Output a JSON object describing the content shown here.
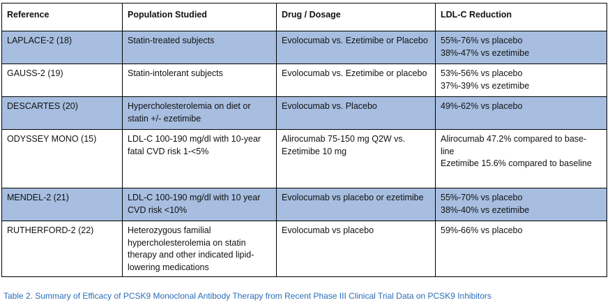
{
  "table": {
    "headers": [
      "Reference",
      "Population Studied",
      "Drug / Dosage",
      "LDL-C Reduction"
    ],
    "rows": [
      {
        "reference": "LAPLACE-2 (18)",
        "population": [
          "Statin-treated subjects"
        ],
        "drug": [
          "Evolocumab vs. Ezetimibe or Placebo"
        ],
        "reduction": [
          "55%-76% vs placebo",
          "38%-47% vs ezetimibe"
        ]
      },
      {
        "reference": "GAUSS-2 (19)",
        "population": [
          "Statin-intolerant subjects"
        ],
        "drug": [
          "Evolocumab vs. Ezetimibe or placebo"
        ],
        "reduction": [
          "53%-56% vs placebo",
          "37%-39% vs ezetimibe"
        ]
      },
      {
        "reference": "DESCARTES (20)",
        "population": [
          "Hypercholesterolemia on diet or",
          "statin +/- ezetimibe"
        ],
        "drug": [
          "Evolocumab vs. Placebo"
        ],
        "reduction": [
          "49%-62% vs placebo"
        ]
      },
      {
        "reference": "ODYSSEY MONO (15)",
        "population": [
          "LDL-C 100-190 mg/dl with 10-year",
          "fatal CVD risk 1-<5%"
        ],
        "drug": [
          "Alirocumab 75-150 mg Q2W vs.",
          "Ezetimibe 10 mg"
        ],
        "reduction": [
          "Alirocumab 47.2% compared to base-",
          "line",
          "Ezetimibe 15.6% compared to baseline"
        ]
      },
      {
        "reference": "MENDEL-2 (21)",
        "population": [
          "LDL-C 100-190 mg/dl with 10 year",
          "CVD risk <10%"
        ],
        "drug": [
          "Evolocumab vs placebo or ezetimibe"
        ],
        "reduction": [
          "55%-70% vs placebo",
          "38%-40% vs ezetimibe"
        ]
      },
      {
        "reference": "RUTHERFORD-2 (22)",
        "population": [
          "Heterozygous familial",
          "hypercholesterolemia on statin",
          "therapy and other indicated lipid-",
          "lowering medications"
        ],
        "drug": [
          "Evolocumab vs placebo"
        ],
        "reduction": [
          "59%-66% vs placebo"
        ]
      }
    ]
  },
  "caption": "Table 2.  Summary of Efficacy of PCSK9 Monoclonal Antibody Therapy from Recent Phase III Clinical Trial Data on PCSK9 Inhibitors",
  "colors": {
    "shaded_row": "#a7bee0",
    "caption_text": "#2a6db5",
    "border": "#000000"
  }
}
